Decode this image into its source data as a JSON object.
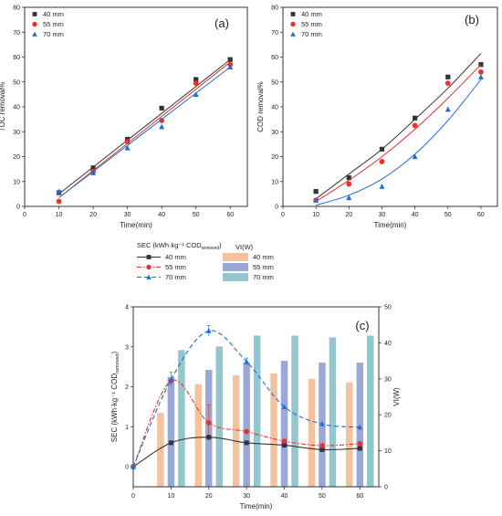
{
  "colors": {
    "s40": "#333333",
    "s55": "#e8322b",
    "s70": "#1f6fd6",
    "bar40": "#f3c3a0",
    "bar55": "#9aa8d8",
    "bar70": "#93c7cd"
  },
  "chart_data": [
    {
      "id": "a",
      "type": "scatter",
      "panel_label": "(a)",
      "xlabel": "Time(min)",
      "ylabel": "TOC removal%",
      "xlim": [
        0,
        65
      ],
      "ylim": [
        0,
        80
      ],
      "x_ticks": [
        "0",
        "10",
        "20",
        "30",
        "40",
        "50",
        "60"
      ],
      "y_ticks": [
        "0",
        "10",
        "20",
        "30",
        "40",
        "50",
        "60",
        "70",
        "80"
      ],
      "legend": "top-left",
      "x": [
        10,
        20,
        30,
        40,
        50,
        60
      ],
      "series": [
        {
          "name": "40 mm",
          "marker": "square",
          "values": [
            5.5,
            15.5,
            27,
            39.5,
            51,
            59
          ],
          "fit": [
            [
              10,
              5
            ],
            [
              60,
              59
            ]
          ]
        },
        {
          "name": "55 mm",
          "marker": "circle",
          "values": [
            2,
            14,
            26,
            34.5,
            49.5,
            57
          ],
          "fit": [
            [
              10,
              3.5
            ],
            [
              60,
              58
            ]
          ]
        },
        {
          "name": "70 mm",
          "marker": "triangle",
          "values": [
            6,
            13.5,
            23.5,
            32,
            45,
            56
          ],
          "fit": [
            [
              10,
              3.5
            ],
            [
              60,
              56
            ]
          ]
        }
      ]
    },
    {
      "id": "b",
      "type": "scatter",
      "panel_label": "(b)",
      "xlabel": "Time(min)",
      "ylabel": "COD removal%",
      "xlim": [
        0,
        65
      ],
      "ylim": [
        0,
        80
      ],
      "x_ticks": [
        "0",
        "10",
        "20",
        "30",
        "40",
        "50",
        "60"
      ],
      "y_ticks": [
        "0",
        "10",
        "20",
        "30",
        "40",
        "50",
        "60",
        "70",
        "80"
      ],
      "legend": "top-left",
      "x": [
        10,
        20,
        30,
        40,
        50,
        60
      ],
      "series": [
        {
          "name": "40 mm",
          "marker": "square",
          "values": [
            6,
            11.5,
            23,
            35.5,
            52,
            57
          ],
          "fit": [
            [
              10,
              3
            ],
            [
              20,
              13
            ],
            [
              30,
              23
            ],
            [
              40,
              35
            ],
            [
              50,
              47.5
            ],
            [
              60,
              61.5
            ]
          ]
        },
        {
          "name": "55 mm",
          "marker": "circle",
          "values": [
            2.5,
            9,
            18,
            32.5,
            49.5,
            54
          ],
          "fit": [
            [
              10,
              2
            ],
            [
              20,
              10.5
            ],
            [
              30,
              20
            ],
            [
              40,
              31
            ],
            [
              50,
              43.5
            ],
            [
              60,
              57
            ]
          ]
        },
        {
          "name": "70 mm",
          "marker": "triangle",
          "values": [
            2.5,
            3.5,
            8,
            20,
            39,
            52
          ],
          "fit": [
            [
              10,
              0.5
            ],
            [
              20,
              4.5
            ],
            [
              30,
              11
            ],
            [
              40,
              21
            ],
            [
              50,
              34.5
            ],
            [
              60,
              51
            ]
          ]
        }
      ]
    },
    {
      "id": "c",
      "type": "bar",
      "panel_label": "(c)",
      "xlabel": "Time(min)",
      "ylabel_left": "SEC (kWh·kg⁻¹ COD",
      "ylabel_left_sub": "removed",
      "ylabel_left_close": ")",
      "ylabel_right": "VI(W)",
      "xlim": [
        0,
        65
      ],
      "ylim_left": [
        -0.5,
        4
      ],
      "ylim_right": [
        0,
        50
      ],
      "x_ticks": [
        "0",
        "10",
        "20",
        "30",
        "40",
        "50",
        "60"
      ],
      "y_ticks_left": [
        "0",
        "1",
        "2",
        "3",
        "4"
      ],
      "y_ticks_right": [
        "0",
        "10",
        "20",
        "30",
        "40",
        "50"
      ],
      "legend_sec_title": "SEC (kWh·kg⁻¹ COD",
      "legend_sec_sub": "removed",
      "legend_sec_close": ")",
      "legend_vi_title": "VI(W)",
      "bar_categories": [
        10,
        20,
        30,
        40,
        50,
        60
      ],
      "bar_series": [
        {
          "name": "40 mm",
          "values": [
            20.5,
            28.5,
            31,
            31.5,
            30,
            29
          ]
        },
        {
          "name": "55 mm",
          "values": [
            30.5,
            32.5,
            34.5,
            35,
            34.5,
            34.5
          ]
        },
        {
          "name": "70 mm",
          "values": [
            38,
            39,
            42,
            42,
            41.5,
            42
          ]
        }
      ],
      "line_x": [
        0,
        10,
        20,
        30,
        40,
        50,
        60
      ],
      "line_series": [
        {
          "name": "40 mm",
          "style": "solid",
          "marker": "square",
          "values": [
            0,
            0.6,
            0.74,
            0.6,
            0.54,
            0.43,
            0.46
          ]
        },
        {
          "name": "55 mm",
          "style": "dashdot",
          "marker": "circle",
          "values": [
            0,
            2.15,
            1.1,
            0.88,
            0.64,
            0.53,
            0.58
          ]
        },
        {
          "name": "70 mm",
          "style": "dash",
          "marker": "triangle",
          "values": [
            0,
            2.18,
            3.4,
            2.63,
            1.5,
            1.07,
            0.99
          ]
        }
      ]
    }
  ]
}
